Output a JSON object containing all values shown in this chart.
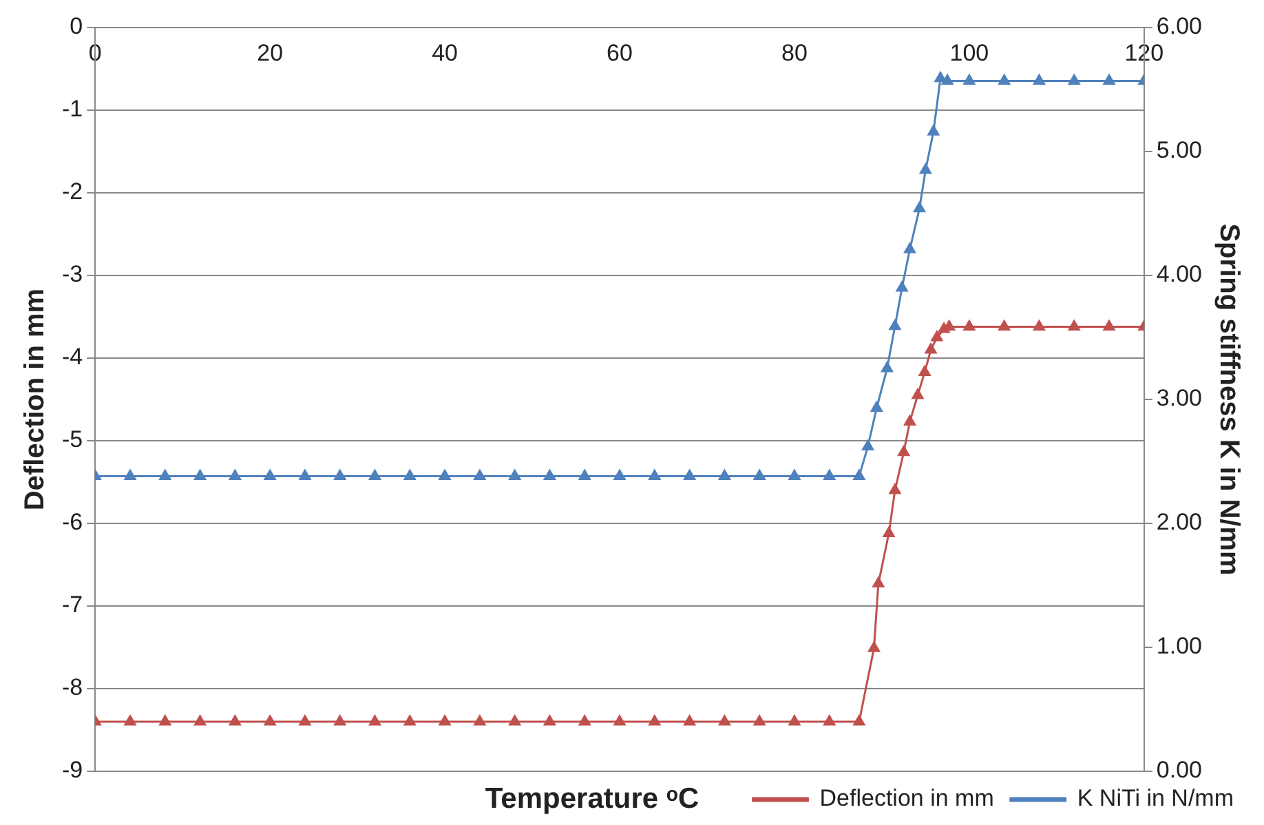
{
  "chart_data": {
    "type": "line",
    "xlabel": "Temperature ᵒC",
    "ylabel": "Deflection in mm",
    "y2label": "Spring stiffness K in N/mm",
    "xlim": [
      0,
      120
    ],
    "xticks": [
      0,
      20,
      40,
      60,
      80,
      100,
      120
    ],
    "ylim": [
      -9,
      0
    ],
    "yticks": [
      -9,
      -8,
      -7,
      -6,
      -5,
      -4,
      -3,
      -2,
      -1,
      0
    ],
    "y2lim": [
      0,
      6
    ],
    "y2ticks": [
      {
        "value": 0,
        "label": "0.00"
      },
      {
        "value": 1,
        "label": "1.00"
      },
      {
        "value": 2,
        "label": "2.00"
      },
      {
        "value": 3,
        "label": "3.00"
      },
      {
        "value": 4,
        "label": "4.00"
      },
      {
        "value": 5,
        "label": "5.00"
      },
      {
        "value": 6,
        "label": "6.00"
      }
    ],
    "grid": "y",
    "legend": "bottom right",
    "marker": "triangle",
    "line_style": "solid",
    "series": [
      {
        "name": "Deflection in mm",
        "color": "#c0504d",
        "x": [
          0,
          4,
          8,
          12,
          16,
          20,
          24,
          28,
          32,
          36,
          40,
          44,
          48,
          52,
          56,
          60,
          64,
          68,
          72,
          76,
          80,
          84,
          87.4,
          89.1,
          89.6,
          90.8,
          91.5,
          92.5,
          93.2,
          94.1,
          94.9,
          95.6,
          96.3,
          97.1,
          97.7,
          100,
          104,
          108,
          112,
          116,
          120
        ],
        "values": [
          -8.4,
          -8.4,
          -8.4,
          -8.4,
          -8.4,
          -8.4,
          -8.4,
          -8.4,
          -8.4,
          -8.4,
          -8.4,
          -8.4,
          -8.4,
          -8.4,
          -8.4,
          -8.4,
          -8.4,
          -8.4,
          -8.4,
          -8.4,
          -8.4,
          -8.4,
          -8.4,
          -7.51,
          -6.73,
          -6.12,
          -5.6,
          -5.14,
          -4.77,
          -4.45,
          -4.17,
          -3.9,
          -3.75,
          -3.65,
          -3.62,
          -3.62,
          -3.62,
          -3.62,
          -3.62,
          -3.62,
          -3.62
        ]
      },
      {
        "name": "K NiTi in N/mm",
        "color": "#4f81bd",
        "axis": "y2",
        "x": [
          0,
          4,
          8,
          12,
          16,
          20,
          24,
          28,
          32,
          36,
          40,
          44,
          48,
          52,
          56,
          60,
          64,
          68,
          72,
          76,
          80,
          84,
          87.4,
          88.4,
          89.4,
          90.6,
          91.5,
          92.3,
          93.2,
          94.3,
          95,
          95.9,
          96.7,
          97.5,
          100,
          104,
          108,
          112,
          116,
          120
        ],
        "values": [
          2.38,
          2.38,
          2.38,
          2.38,
          2.38,
          2.38,
          2.38,
          2.38,
          2.38,
          2.38,
          2.38,
          2.38,
          2.38,
          2.38,
          2.38,
          2.38,
          2.38,
          2.38,
          2.38,
          2.38,
          2.38,
          2.38,
          2.38,
          2.62,
          2.93,
          3.25,
          3.59,
          3.9,
          4.21,
          4.54,
          4.85,
          5.16,
          5.59,
          5.57,
          5.57,
          5.57,
          5.57,
          5.57,
          5.57,
          5.57
        ]
      }
    ]
  }
}
